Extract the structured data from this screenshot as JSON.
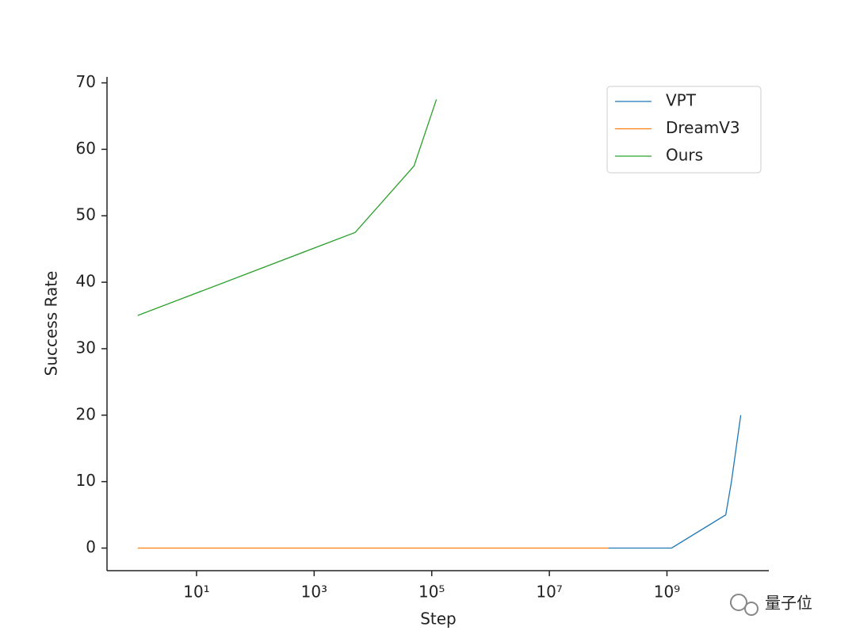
{
  "chart_data": {
    "type": "line",
    "x_label": "Step",
    "y_label": "Success Rate",
    "xscale": "log",
    "xlim": [
      0.3,
      54000000000
    ],
    "xticks": [
      {
        "value": 10,
        "label": "10¹"
      },
      {
        "value": 1000,
        "label": "10³"
      },
      {
        "value": 100000,
        "label": "10⁵"
      },
      {
        "value": 10000000,
        "label": "10⁷"
      },
      {
        "value": 1000000000,
        "label": "10⁹"
      }
    ],
    "ylim": [
      -3.4,
      70.9
    ],
    "yticks": [
      0,
      10,
      20,
      30,
      40,
      50,
      60,
      70
    ],
    "legend": "upper right",
    "series": [
      {
        "name": "VPT",
        "color": "#1f77b4",
        "x": [
          100000000,
          1200000000,
          10000000000,
          12500000000,
          18000000000
        ],
        "values": [
          0,
          0,
          5,
          10,
          20
        ]
      },
      {
        "name": "DreamV3",
        "color": "#ff7f0e",
        "x": [
          1,
          100000000
        ],
        "values": [
          0,
          0
        ]
      },
      {
        "name": "Ours",
        "color": "#2ca02c",
        "x": [
          1,
          5000,
          50000,
          120000
        ],
        "values": [
          35,
          47.5,
          57.5,
          67.5
        ]
      }
    ],
    "watermark": "量子位"
  }
}
